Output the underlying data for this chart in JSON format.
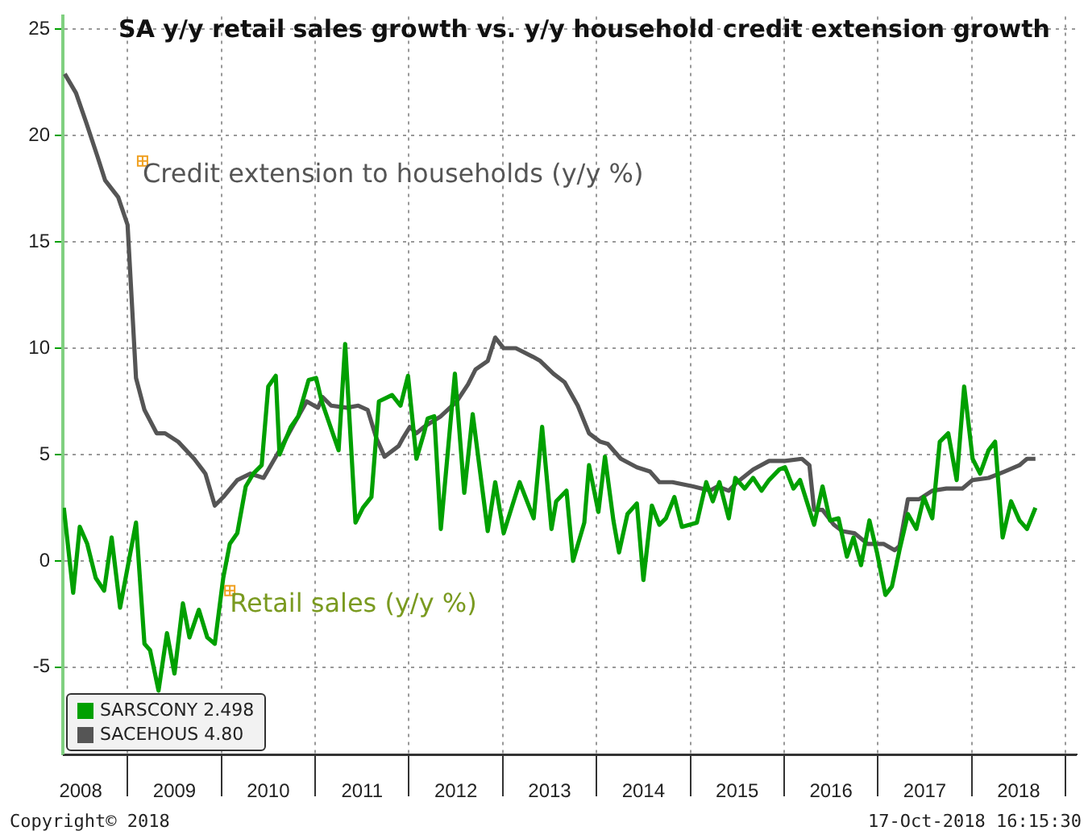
{
  "chart_data": {
    "type": "line",
    "title": "SA y/y retail sales growth vs. y/y household credit extension growth",
    "xlim": [
      2008.31,
      2019.12
    ],
    "xticks": [
      {
        "value": 2008.5,
        "label": "2008"
      },
      {
        "value": 2009,
        "label": null
      },
      {
        "value": 2009.5,
        "label": "2009"
      },
      {
        "value": 2010,
        "label": null
      },
      {
        "value": 2010.5,
        "label": "2010"
      },
      {
        "value": 2011,
        "label": null
      },
      {
        "value": 2011.5,
        "label": "2011"
      },
      {
        "value": 2012,
        "label": null
      },
      {
        "value": 2012.5,
        "label": "2012"
      },
      {
        "value": 2013,
        "label": null
      },
      {
        "value": 2013.5,
        "label": "2013"
      },
      {
        "value": 2014,
        "label": null
      },
      {
        "value": 2014.5,
        "label": "2014"
      },
      {
        "value": 2015,
        "label": null
      },
      {
        "value": 2015.5,
        "label": "2015"
      },
      {
        "value": 2016,
        "label": null
      },
      {
        "value": 2016.5,
        "label": "2016"
      },
      {
        "value": 2017,
        "label": null
      },
      {
        "value": 2017.5,
        "label": "2017"
      },
      {
        "value": 2018,
        "label": null
      },
      {
        "value": 2018.5,
        "label": "2018"
      },
      {
        "value": 2019,
        "label": null
      }
    ],
    "ylim": [
      -9.1,
      25.6
    ],
    "yticks": [
      -5,
      0,
      5,
      10,
      15,
      20,
      25
    ],
    "grid": true,
    "legend": "bottom left",
    "marker": "none",
    "line_style": "solid",
    "series": [
      {
        "name": "SARSCONY 2.498",
        "color": "#00a000",
        "x": [
          2008.32,
          2008.42,
          2008.49,
          2008.57,
          2008.66,
          2008.75,
          2008.83,
          2008.92,
          2009.09,
          2009.18,
          2009.24,
          2009.33,
          2009.42,
          2009.5,
          2009.59,
          2009.66,
          2009.76,
          2009.85,
          2009.93,
          2010.02,
          2010.09,
          2010.17,
          2010.26,
          2010.34,
          2010.43,
          2010.5,
          2010.58,
          2010.62,
          2010.74,
          2010.82,
          2010.93,
          2011.01,
          2011.07,
          2011.25,
          2011.32,
          2011.43,
          2011.51,
          2011.6,
          2011.68,
          2011.82,
          2011.91,
          2011.99,
          2012.08,
          2012.16,
          2012.2,
          2012.27,
          2012.34,
          2012.49,
          2012.59,
          2012.68,
          2012.84,
          2012.92,
          2013.01,
          2013.18,
          2013.33,
          2013.42,
          2013.52,
          2013.57,
          2013.68,
          2013.75,
          2013.87,
          2013.92,
          2014.02,
          2014.09,
          2014.18,
          2014.24,
          2014.33,
          2014.43,
          2014.5,
          2014.59,
          2014.67,
          2014.74,
          2014.83,
          2014.91,
          2015.07,
          2015.17,
          2015.24,
          2015.31,
          2015.41,
          2015.48,
          2015.58,
          2015.67,
          2015.76,
          2015.84,
          2015.95,
          2016.01,
          2016.1,
          2016.17,
          2016.32,
          2016.41,
          2016.49,
          2016.58,
          2016.67,
          2016.74,
          2016.82,
          2016.91,
          2016.99,
          2017.08,
          2017.15,
          2017.23,
          2017.32,
          2017.41,
          2017.49,
          2017.58,
          2017.66,
          2017.75,
          2017.84,
          2017.92,
          2018.01,
          2018.09,
          2018.18,
          2018.25,
          2018.33,
          2018.42,
          2018.51,
          2018.59,
          2018.68
        ],
        "values": [
          2.5,
          -1.5,
          1.6,
          0.8,
          -0.8,
          -1.4,
          1.1,
          -2.2,
          1.8,
          -3.9,
          -4.2,
          -6.1,
          -3.4,
          -5.3,
          -2.0,
          -3.6,
          -2.3,
          -3.6,
          -3.9,
          -0.8,
          0.8,
          1.3,
          3.5,
          4.1,
          4.5,
          8.2,
          8.7,
          5.0,
          6.3,
          6.8,
          8.5,
          8.6,
          7.5,
          5.2,
          10.2,
          1.8,
          2.5,
          3.0,
          7.5,
          7.8,
          7.3,
          8.7,
          4.8,
          6.0,
          6.7,
          6.8,
          1.5,
          8.8,
          3.2,
          6.9,
          1.4,
          3.7,
          1.3,
          3.7,
          2.0,
          6.3,
          1.5,
          2.8,
          3.3,
          0.0,
          1.8,
          4.5,
          2.3,
          4.9,
          1.9,
          0.4,
          2.2,
          2.7,
          -0.9,
          2.6,
          1.7,
          2.0,
          3.0,
          1.6,
          1.8,
          3.7,
          2.8,
          3.7,
          2.0,
          3.9,
          3.4,
          3.9,
          3.3,
          3.8,
          4.3,
          4.4,
          3.4,
          3.8,
          1.7,
          3.5,
          1.9,
          2.0,
          0.2,
          1.1,
          -0.2,
          1.9,
          0.4,
          -1.6,
          -1.2,
          0.5,
          2.2,
          1.5,
          3.0,
          2.0,
          5.6,
          6.0,
          3.8,
          8.2,
          4.8,
          4.1,
          5.2,
          5.6,
          1.1,
          2.8,
          1.9,
          1.5,
          2.5
        ]
      },
      {
        "name": "SACEHOUS 4.80",
        "color": "#555555",
        "x": [
          2008.33,
          2008.45,
          2008.56,
          2008.68,
          2008.76,
          2008.9,
          2009.0,
          2009.09,
          2009.18,
          2009.31,
          2009.4,
          2009.54,
          2009.71,
          2009.83,
          2009.93,
          2010.02,
          2010.17,
          2010.31,
          2010.45,
          2010.62,
          2010.77,
          2010.91,
          2011.03,
          2011.08,
          2011.17,
          2011.34,
          2011.46,
          2011.56,
          2011.65,
          2011.74,
          2011.89,
          2011.94,
          2012.01,
          2012.08,
          2012.16,
          2012.34,
          2012.51,
          2012.63,
          2012.71,
          2012.84,
          2012.92,
          2013.01,
          2013.14,
          2013.32,
          2013.4,
          2013.54,
          2013.66,
          2013.8,
          2013.92,
          2014.04,
          2014.12,
          2014.26,
          2014.43,
          2014.57,
          2014.67,
          2014.81,
          2015.03,
          2015.21,
          2015.29,
          2015.41,
          2015.5,
          2015.67,
          2015.84,
          2016.01,
          2016.19,
          2016.27,
          2016.32,
          2016.41,
          2016.53,
          2016.62,
          2016.75,
          2016.89,
          2017.06,
          2017.18,
          2017.23,
          2017.32,
          2017.44,
          2017.58,
          2017.73,
          2017.9,
          2018.01,
          2018.18,
          2018.35,
          2018.51,
          2018.59,
          2018.68
        ],
        "values": [
          22.9,
          22.0,
          20.6,
          19.0,
          17.9,
          17.1,
          15.8,
          8.6,
          7.1,
          6.0,
          6.0,
          5.6,
          4.8,
          4.1,
          2.6,
          3.0,
          3.8,
          4.1,
          3.9,
          5.2,
          6.4,
          7.5,
          7.2,
          7.7,
          7.3,
          7.2,
          7.3,
          7.1,
          5.8,
          4.9,
          5.4,
          5.8,
          6.3,
          6.0,
          6.3,
          6.8,
          7.5,
          8.3,
          9.0,
          9.4,
          10.5,
          10.0,
          10.0,
          9.6,
          9.4,
          8.8,
          8.4,
          7.3,
          6.0,
          5.6,
          5.5,
          4.8,
          4.4,
          4.2,
          3.7,
          3.7,
          3.5,
          3.3,
          3.5,
          3.3,
          3.7,
          4.3,
          4.7,
          4.7,
          4.8,
          4.5,
          2.4,
          2.4,
          1.7,
          1.4,
          1.3,
          0.8,
          0.8,
          0.5,
          0.7,
          2.9,
          2.9,
          3.3,
          3.4,
          3.4,
          3.8,
          3.9,
          4.2,
          4.5,
          4.8,
          4.8
        ]
      }
    ],
    "annotations": [
      {
        "text": "Credit extension to households (y/y %)",
        "x": 2009.16,
        "y": 18.8
      },
      {
        "text": "Retail sales (y/y %)",
        "x": 2010.09,
        "y": -1.4
      },
      "Copyright© 2018",
      "17-Oct-2018 16:15:30"
    ]
  }
}
